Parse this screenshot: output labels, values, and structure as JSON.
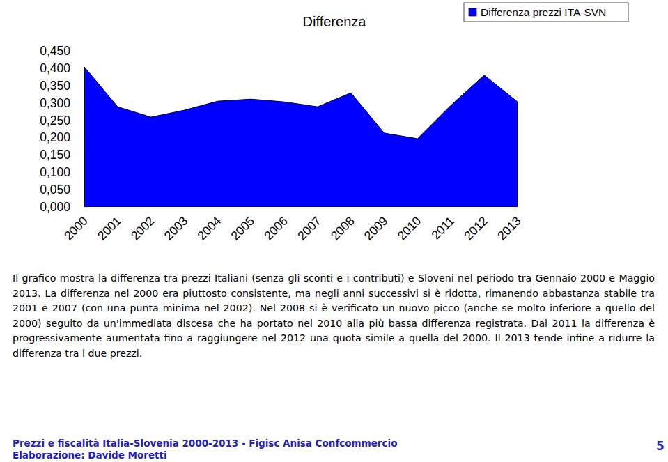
{
  "chart_data": {
    "type": "area",
    "title": "Differenza",
    "categories": [
      "2000",
      "2001",
      "2002",
      "2003",
      "2004",
      "2005",
      "2006",
      "2007",
      "2008",
      "2009",
      "2010",
      "2011",
      "2012",
      "2013"
    ],
    "series": [
      {
        "name": "Differenza prezzi ITA-SVN",
        "color": "#0000ff",
        "values": [
          0.404,
          0.289,
          0.259,
          0.279,
          0.305,
          0.311,
          0.303,
          0.289,
          0.329,
          0.213,
          0.197,
          0.293,
          0.38,
          0.303
        ]
      }
    ],
    "ylim": [
      0,
      0.45
    ],
    "yticks": [
      {
        "value": 0,
        "label": "0,000"
      },
      {
        "value": 0.05,
        "label": "0,050"
      },
      {
        "value": 0.1,
        "label": "0,100"
      },
      {
        "value": 0.15,
        "label": "0,150"
      },
      {
        "value": 0.2,
        "label": "0,200"
      },
      {
        "value": 0.25,
        "label": "0,250"
      },
      {
        "value": 0.3,
        "label": "0,300"
      },
      {
        "value": 0.35,
        "label": "0,350"
      },
      {
        "value": 0.4,
        "label": "0,400"
      },
      {
        "value": 0.45,
        "label": "0,450"
      }
    ],
    "grid": false,
    "legend": "top-right"
  },
  "caption": "Il grafico mostra la differenza tra prezzi Italiani (senza gli sconti e i contributi) e Sloveni nel periodo tra Gennaio 2000 e Maggio 2013. La differenza nel 2000 era piuttosto consistente, ma negli anni successivi si è ridotta, rimanendo abbastanza stabile tra 2001 e 2007 (con una punta minima nel 2002). Nel 2008 si è verificato un nuovo picco (anche se molto inferiore a quello del 2000) seguito da un'immediata discesa che ha portato nel 2010 alla più bassa differenza registrata. Dal 2011 la differenza è progressivamente aumentata fino a raggiungere nel 2012 una quota simile a quella del 2000. Il 2013 tende infine a ridurre la differenza tra i due prezzi.",
  "footer": {
    "source": "Prezzi e fiscalità Italia-Slovenia 2000-2013 - Figisc Anisa Confcommercio",
    "author": "Elaborazione: Davide Moretti",
    "page": "5"
  }
}
